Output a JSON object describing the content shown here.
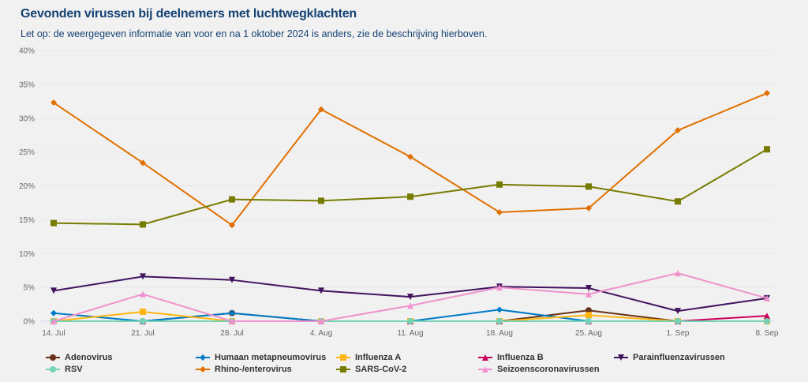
{
  "header": {
    "title": "Gevonden virussen bij deelnemers met luchtwegklachten",
    "subtitle": "Let op: de weergegeven informatie van voor en na 1 oktober 2024 is anders, zie de beschrijving hierboven."
  },
  "chart_data": {
    "type": "line",
    "title": "Gevonden virussen bij deelnemers met luchtwegklachten",
    "subtitle": "Let op: de weergegeven informatie van voor en na 1 oktober 2024 is anders, zie de beschrijving hierboven.",
    "xlabel": "",
    "ylabel": "",
    "categories": [
      "14. Jul",
      "21. Jul",
      "28. Jul",
      "4. Aug",
      "11. Aug",
      "18. Aug",
      "25. Aug",
      "1. Sep",
      "8. Sep"
    ],
    "y_ticks": [
      "0%",
      "5%",
      "10%",
      "15%",
      "20%",
      "25%",
      "30%",
      "35%",
      "40%"
    ],
    "ylim": [
      0,
      40
    ],
    "grid": true,
    "legend_position": "bottom",
    "series": [
      {
        "name": "Adenovirus",
        "color": "#673218",
        "marker": "circle",
        "values": [
          0,
          0,
          1.2,
          0,
          0,
          0,
          1.6,
          0,
          0
        ]
      },
      {
        "name": "Humaan metapneumovirus",
        "color": "#007bc7",
        "marker": "diamond",
        "values": [
          1.2,
          0,
          1.2,
          0,
          0,
          1.7,
          0,
          0,
          0
        ]
      },
      {
        "name": "Influenza A",
        "color": "#ffb612",
        "marker": "square",
        "values": [
          0,
          1.4,
          0,
          0,
          0,
          0,
          0.9,
          0,
          0
        ]
      },
      {
        "name": "Influenza B",
        "color": "#ca005d",
        "marker": "triangle",
        "values": [
          0,
          0,
          0,
          0,
          0,
          0,
          0,
          0,
          0.8
        ]
      },
      {
        "name": "Parainfluenzavirussen",
        "color": "#42145f",
        "marker": "triangle-down",
        "values": [
          4.5,
          6.6,
          6.1,
          4.5,
          3.6,
          5.1,
          4.9,
          1.5,
          3.4
        ]
      },
      {
        "name": "RSV",
        "color": "#76d2b6",
        "marker": "circle",
        "values": [
          0,
          0,
          0,
          0,
          0,
          0,
          0,
          0,
          0
        ]
      },
      {
        "name": "Rhino-/enterovirus",
        "color": "#e17000",
        "marker": "diamond",
        "values": [
          32.3,
          23.4,
          14.2,
          31.3,
          24.3,
          16.1,
          16.7,
          28.2,
          33.7
        ]
      },
      {
        "name": "SARS-CoV-2",
        "color": "#777c00",
        "marker": "square",
        "values": [
          14.5,
          14.3,
          18.0,
          17.8,
          18.4,
          20.2,
          19.9,
          17.7,
          25.4
        ]
      },
      {
        "name": "Seizoenscoronavirussen",
        "color": "#f092cd",
        "marker": "triangle",
        "values": [
          0,
          4.0,
          0,
          0,
          2.3,
          5.0,
          4.0,
          7.1,
          3.4
        ]
      }
    ]
  }
}
